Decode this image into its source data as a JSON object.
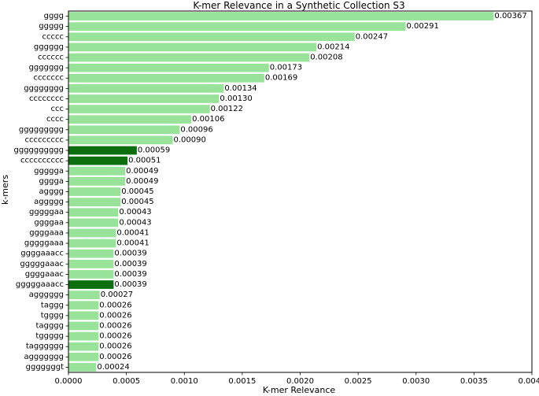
{
  "chart_data": {
    "type": "bar",
    "orientation": "horizontal",
    "title": "K-mer Relevance in a Synthetic Collection S3",
    "xlabel": "K-mer Relevance",
    "ylabel": "k-mers",
    "xlim": [
      0,
      0.004
    ],
    "xticks": [
      0.0,
      0.0005,
      0.001,
      0.0015,
      0.002,
      0.0025,
      0.003,
      0.0035,
      0.004
    ],
    "xtick_labels": [
      "0.0000",
      "0.0005",
      "0.0010",
      "0.0015",
      "0.0020",
      "0.0025",
      "0.0030",
      "0.0035",
      "0.0040"
    ],
    "colors": {
      "default": "#98e29a",
      "highlight": "#0d6e10",
      "axis": "#000000"
    },
    "bars": [
      {
        "label": "gggg",
        "value": 0.00367,
        "value_label": "0.00367",
        "highlight": false
      },
      {
        "label": "ggggg",
        "value": 0.00291,
        "value_label": "0.00291",
        "highlight": false
      },
      {
        "label": "ccccc",
        "value": 0.00247,
        "value_label": "0.00247",
        "highlight": false
      },
      {
        "label": "gggggg",
        "value": 0.00214,
        "value_label": "0.00214",
        "highlight": false
      },
      {
        "label": "cccccc",
        "value": 0.00208,
        "value_label": "0.00208",
        "highlight": false
      },
      {
        "label": "ggggggg",
        "value": 0.00173,
        "value_label": "0.00173",
        "highlight": false
      },
      {
        "label": "ccccccc",
        "value": 0.00169,
        "value_label": "0.00169",
        "highlight": false
      },
      {
        "label": "gggggggg",
        "value": 0.00134,
        "value_label": "0.00134",
        "highlight": false
      },
      {
        "label": "cccccccc",
        "value": 0.0013,
        "value_label": "0.00130",
        "highlight": false
      },
      {
        "label": "ccc",
        "value": 0.00122,
        "value_label": "0.00122",
        "highlight": false
      },
      {
        "label": "cccc",
        "value": 0.00106,
        "value_label": "0.00106",
        "highlight": false
      },
      {
        "label": "ggggggggg",
        "value": 0.00096,
        "value_label": "0.00096",
        "highlight": false
      },
      {
        "label": "ccccccccc",
        "value": 0.0009,
        "value_label": "0.00090",
        "highlight": false
      },
      {
        "label": "gggggggggg",
        "value": 0.00059,
        "value_label": "0.00059",
        "highlight": true
      },
      {
        "label": "cccccccccc",
        "value": 0.00051,
        "value_label": "0.00051",
        "highlight": true
      },
      {
        "label": "ggggga",
        "value": 0.00049,
        "value_label": "0.00049",
        "highlight": false
      },
      {
        "label": "gggga",
        "value": 0.00049,
        "value_label": "0.00049",
        "highlight": false
      },
      {
        "label": "agggg",
        "value": 0.00045,
        "value_label": "0.00045",
        "highlight": false
      },
      {
        "label": "aggggg",
        "value": 0.00045,
        "value_label": "0.00045",
        "highlight": false
      },
      {
        "label": "gggggaa",
        "value": 0.00043,
        "value_label": "0.00043",
        "highlight": false
      },
      {
        "label": "ggggaa",
        "value": 0.00043,
        "value_label": "0.00043",
        "highlight": false
      },
      {
        "label": "ggggaaa",
        "value": 0.00041,
        "value_label": "0.00041",
        "highlight": false
      },
      {
        "label": "gggggaaa",
        "value": 0.00041,
        "value_label": "0.00041",
        "highlight": false
      },
      {
        "label": "ggggaaacc",
        "value": 0.00039,
        "value_label": "0.00039",
        "highlight": false
      },
      {
        "label": "gggggaaac",
        "value": 0.00039,
        "value_label": "0.00039",
        "highlight": false
      },
      {
        "label": "ggggaaac",
        "value": 0.00039,
        "value_label": "0.00039",
        "highlight": false
      },
      {
        "label": "gggggaaacc",
        "value": 0.00039,
        "value_label": "0.00039",
        "highlight": true
      },
      {
        "label": "agggggg",
        "value": 0.00027,
        "value_label": "0.00027",
        "highlight": false
      },
      {
        "label": "taggg",
        "value": 0.00026,
        "value_label": "0.00026",
        "highlight": false
      },
      {
        "label": "tgggg",
        "value": 0.00026,
        "value_label": "0.00026",
        "highlight": false
      },
      {
        "label": "tagggg",
        "value": 0.00026,
        "value_label": "0.00026",
        "highlight": false
      },
      {
        "label": "tggggg",
        "value": 0.00026,
        "value_label": "0.00026",
        "highlight": false
      },
      {
        "label": "tagggggg",
        "value": 0.00026,
        "value_label": "0.00026",
        "highlight": false
      },
      {
        "label": "aggggggg",
        "value": 0.00026,
        "value_label": "0.00026",
        "highlight": false
      },
      {
        "label": "gggggggt",
        "value": 0.00024,
        "value_label": "0.00024",
        "highlight": false
      }
    ]
  }
}
